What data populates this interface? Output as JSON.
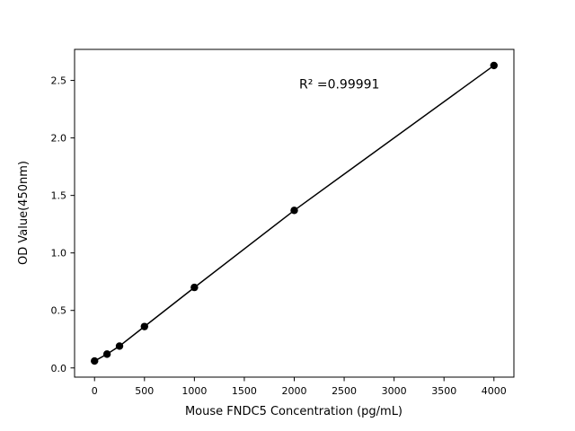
{
  "figure": {
    "background": "#ffffff"
  },
  "chart_data": {
    "type": "scatter",
    "title": "",
    "xlabel": "Mouse FNDC5 Concentration (pg/mL)",
    "ylabel": "OD Value(450nm)",
    "x": [
      0,
      125,
      250,
      500,
      1000,
      2000,
      4000
    ],
    "y": [
      0.06,
      0.12,
      0.19,
      0.36,
      0.7,
      1.37,
      2.63
    ],
    "xlim": [
      -200,
      4200
    ],
    "ylim": [
      -0.08,
      2.77
    ],
    "xticks": [
      0,
      500,
      1000,
      1500,
      2000,
      2500,
      3000,
      3500,
      4000
    ],
    "yticks": [
      0.0,
      0.5,
      1.0,
      1.5,
      2.0,
      2.5
    ],
    "grid": false,
    "legend": null,
    "line": true,
    "line_color": "#000000",
    "marker_color": "#000000",
    "annotation": {
      "text": "R² =0.99991",
      "x": 2050,
      "y": 2.43
    }
  }
}
